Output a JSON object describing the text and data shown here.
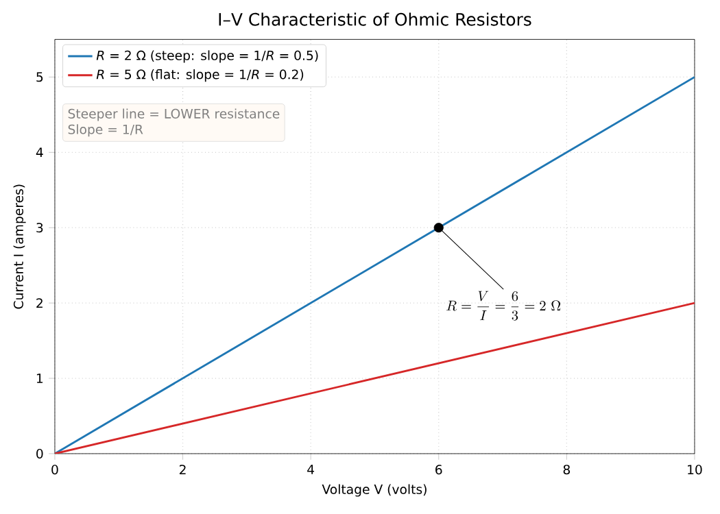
{
  "chart_data": {
    "type": "line",
    "title": "I–V Characteristic of Ohmic Resistors",
    "xlabel": "Voltage  V  (volts)",
    "ylabel": "Current  I  (amperes)",
    "x": [
      0,
      10
    ],
    "series": [
      {
        "name": "*R* = 2 Ω (steep: slope = 1/*R* = 0.5)",
        "color": "#1f77b4",
        "values": [
          0,
          5
        ]
      },
      {
        "name": "*R* = 5 Ω (flat: slope = 1/*R* = 0.2)",
        "color": "#d62728",
        "values": [
          0,
          2
        ]
      },
      {
        "type": "scatter",
        "x": [
          6
        ],
        "values": [
          3
        ],
        "color": "#000000"
      }
    ],
    "annotations": [
      {
        "text": "R = \\frac{V}{I} = \\frac{6}{3} = 2\\ \\Omega",
        "x": 6,
        "y": 3
      },
      "Steeper line = LOWER resistance",
      "Slope = 1/R"
    ],
    "xlim": [
      0,
      10
    ],
    "ylim": [
      0,
      5.5
    ],
    "xticks": [
      0,
      2,
      4,
      6,
      8,
      10
    ],
    "yticks": [
      0,
      1,
      2,
      3,
      4,
      5
    ],
    "grid": true,
    "line_style": "solid",
    "legend": "top left"
  }
}
